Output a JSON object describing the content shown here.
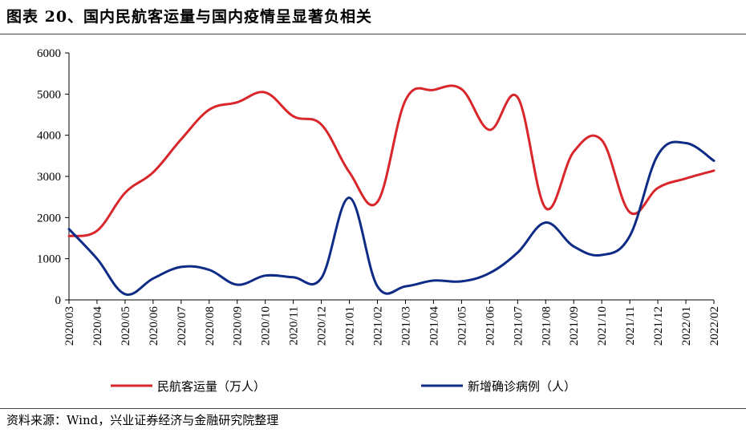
{
  "title": "图表 20、国内民航客运量与国内疫情呈显著负相关",
  "source": "资料来源：Wind，兴业证券经济与金融研究院整理",
  "chart_data": {
    "type": "line",
    "title": "图表 20、国内民航客运量与国内疫情呈显著负相关",
    "categories": [
      "2020/03",
      "2020/04",
      "2020/05",
      "2020/06",
      "2020/07",
      "2020/08",
      "2020/09",
      "2020/10",
      "2020/11",
      "2020/12",
      "2021/01",
      "2021/02",
      "2021/03",
      "2021/04",
      "2021/05",
      "2021/06",
      "2021/07",
      "2021/08",
      "2021/09",
      "2021/10",
      "2021/11",
      "2021/12",
      "2022/01",
      "2022/02"
    ],
    "ylim": [
      0,
      6000
    ],
    "yticks": [
      0,
      1000,
      2000,
      3000,
      4000,
      5000,
      6000
    ],
    "grid": false,
    "legend_position": "bottom",
    "series": [
      {
        "name": "民航客运量（万人）",
        "color": "#d9262b",
        "values": [
          1550,
          1680,
          2600,
          3100,
          3900,
          4620,
          4800,
          5040,
          4460,
          4260,
          3100,
          2380,
          4850,
          5100,
          5120,
          4130,
          4920,
          2230,
          3600,
          3880,
          2130,
          2720,
          2950,
          3140
        ]
      },
      {
        "name": "新增确诊病例（人）",
        "color": "#0e2b86",
        "values": [
          1720,
          1000,
          140,
          520,
          800,
          730,
          370,
          590,
          550,
          530,
          2480,
          330,
          330,
          470,
          450,
          650,
          1150,
          1880,
          1300,
          1090,
          1550,
          3520,
          3810,
          3380
        ]
      }
    ]
  }
}
